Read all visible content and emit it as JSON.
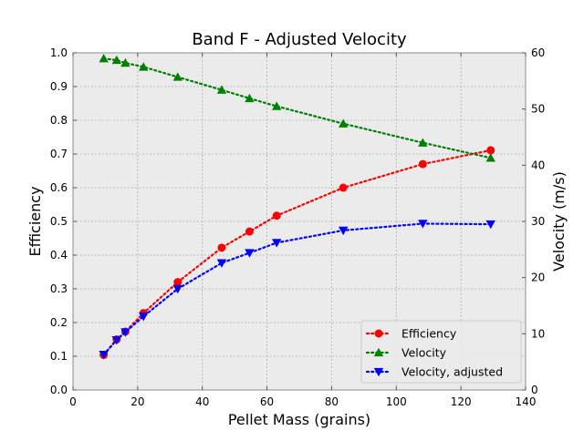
{
  "chart_data": {
    "type": "line",
    "title": "Band F - Adjusted Velocity",
    "xlabel": "Pellet Mass (grains)",
    "ylabel": "Efficiency",
    "y2label": "Velocity (m/s)",
    "xlim": [
      0,
      140
    ],
    "ylim": [
      0,
      1.0
    ],
    "y2lim": [
      0,
      60
    ],
    "xticks": [
      "0",
      "20",
      "40",
      "60",
      "80",
      "100",
      "120",
      "140"
    ],
    "yticks": [
      "0.0",
      "0.1",
      "0.2",
      "0.3",
      "0.4",
      "0.5",
      "0.6",
      "0.7",
      "0.8",
      "0.9",
      "1.0"
    ],
    "y2ticks": [
      "0",
      "10",
      "20",
      "30",
      "40",
      "50",
      "60"
    ],
    "grid": true,
    "legend_position": "lower-right",
    "x": [
      9.5,
      13.5,
      16.2,
      21.8,
      32.4,
      46,
      54.6,
      63,
      83.6,
      108.2,
      129.2
    ],
    "series": [
      {
        "name": "Efficiency",
        "axis": "left",
        "color": "#ff0000",
        "marker": "circle",
        "values": [
          0.104,
          0.15,
          0.173,
          0.228,
          0.32,
          0.422,
          0.47,
          0.517,
          0.6,
          0.67,
          0.711
        ]
      },
      {
        "name": "Velocity",
        "axis": "right",
        "color": "#008000",
        "marker": "triangle-up",
        "values": [
          59.0,
          58.7,
          58.2,
          57.5,
          55.7,
          53.4,
          51.9,
          50.5,
          47.4,
          44.0,
          41.3
        ]
      },
      {
        "name": "Velocity, adjusted",
        "axis": "right",
        "color": "#0000ff",
        "marker": "triangle-down",
        "values": [
          6.3,
          8.9,
          10.3,
          13.1,
          18.0,
          22.6,
          24.4,
          26.2,
          28.4,
          29.6,
          29.5
        ]
      }
    ]
  }
}
